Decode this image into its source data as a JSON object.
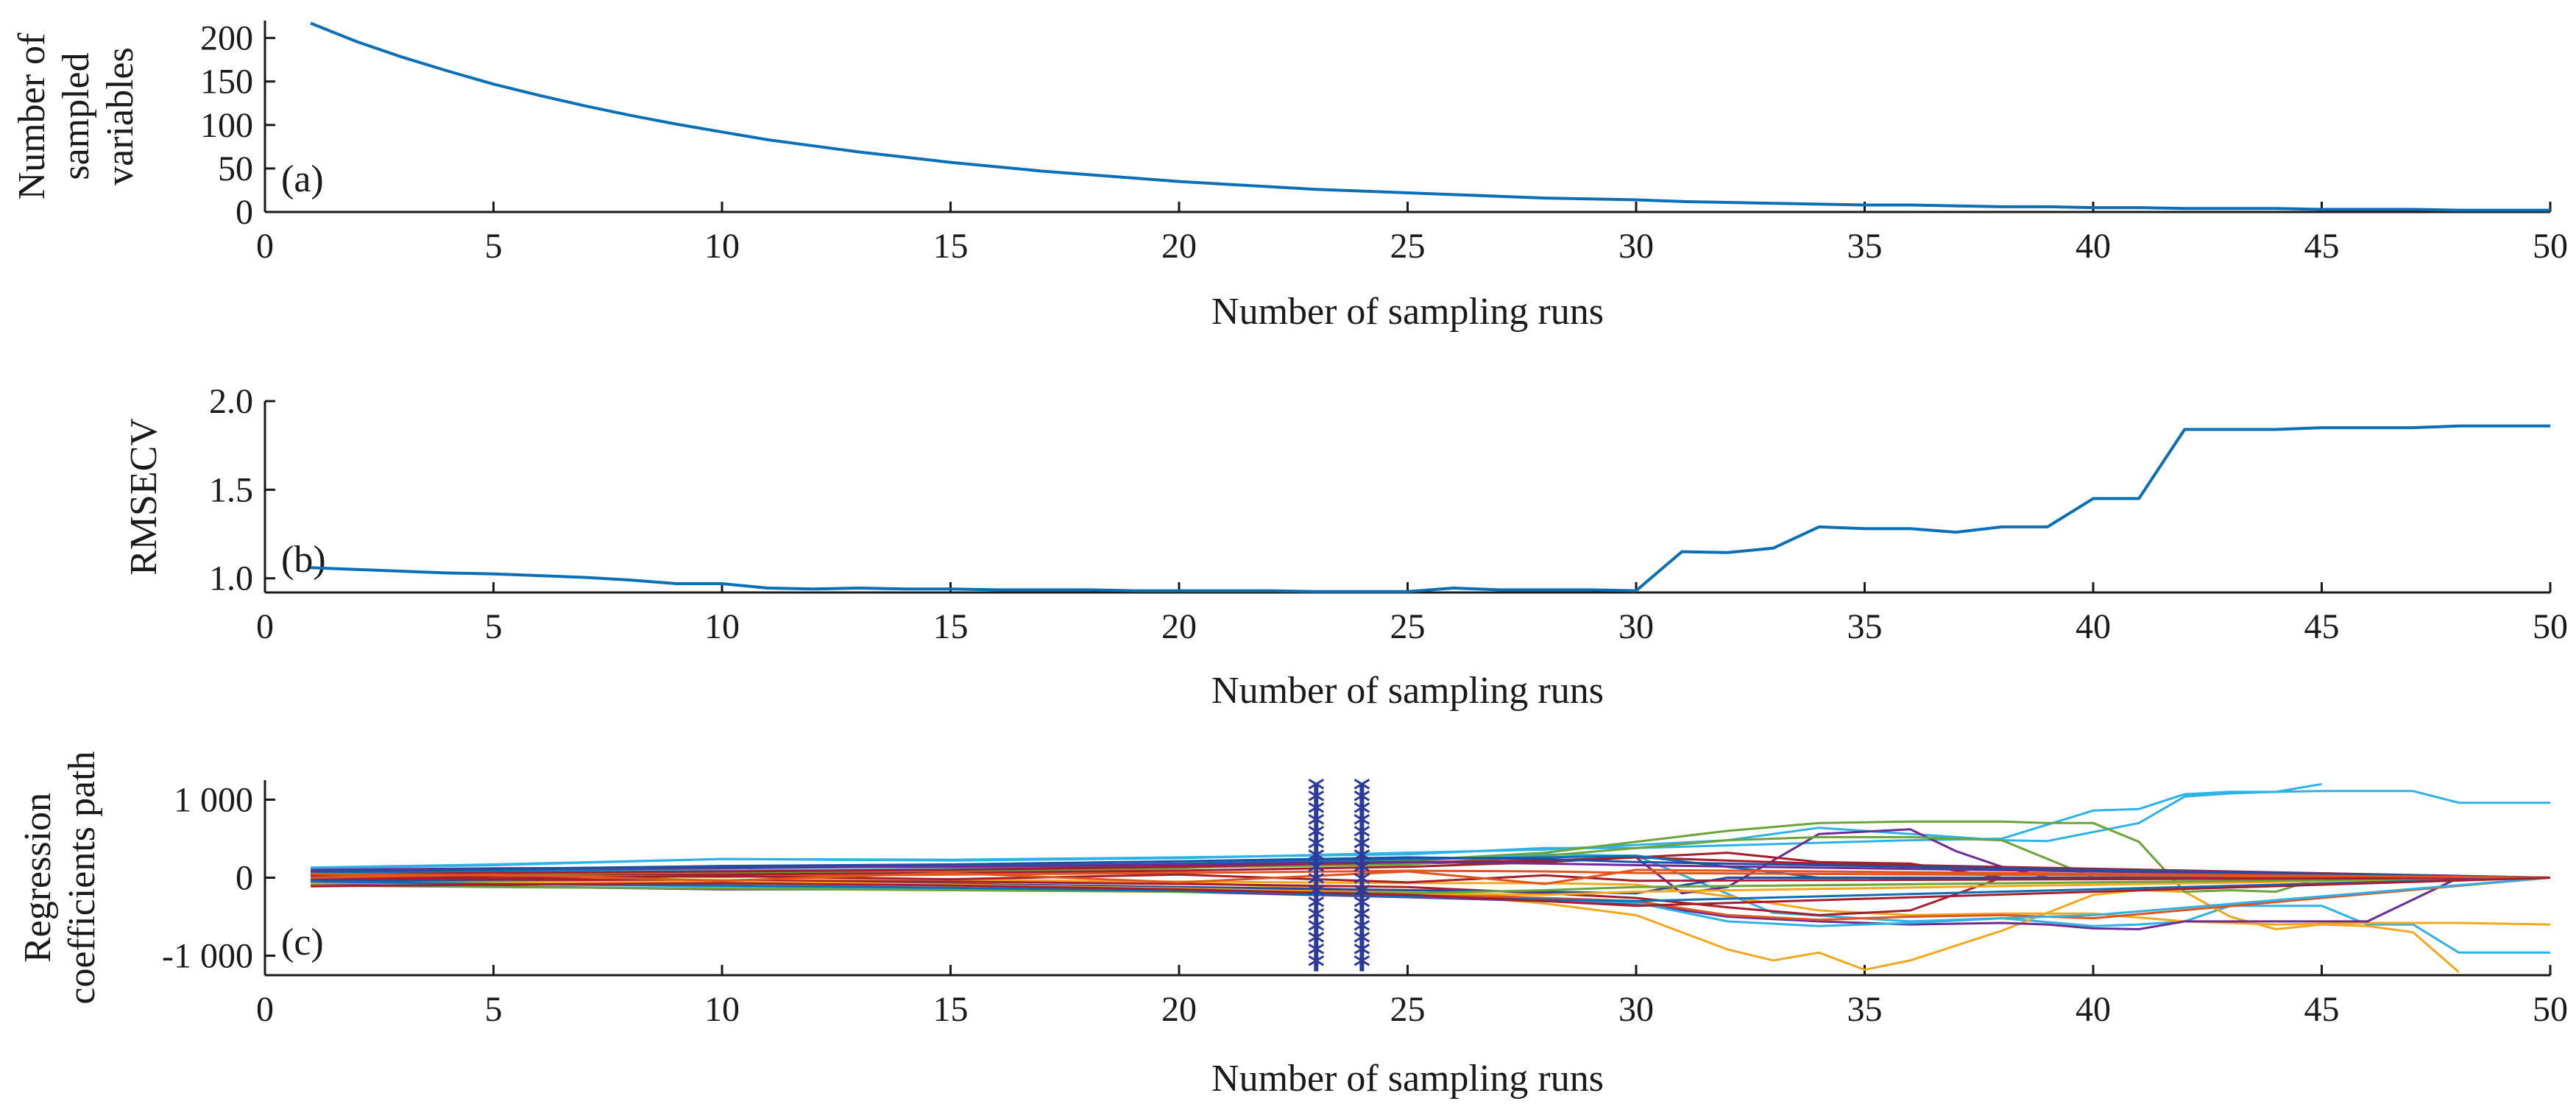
{
  "colors": {
    "primary_line": "#0a6fb5",
    "axis": "#1a1a1a",
    "marker": "#2d3a9a",
    "path_palette": [
      "#0a6fb5",
      "#e0541e",
      "#f2a81d",
      "#6d2c91",
      "#6aa43a",
      "#2eb2e6",
      "#a51e2e",
      "#1f4fa0"
    ]
  },
  "chart_data": [
    {
      "id": "a",
      "type": "line",
      "panel_label": "(a)",
      "xlabel": "Number of sampling runs",
      "ylabel": [
        "Number of",
        "sampled",
        "variables"
      ],
      "xlim": [
        0,
        50
      ],
      "ylim": [
        0,
        220
      ],
      "xticks": [
        0,
        5,
        10,
        15,
        20,
        25,
        30,
        35,
        40,
        45,
        50
      ],
      "yticks": [
        0,
        50,
        100,
        150,
        200
      ],
      "ytick_labels": [
        "0",
        "50",
        "100",
        "150",
        "200"
      ],
      "grid": false,
      "series": [
        {
          "x": [
            1,
            2,
            3,
            4,
            5,
            6,
            7,
            8,
            9,
            10,
            11,
            12,
            13,
            14,
            15,
            16,
            17,
            18,
            19,
            20,
            21,
            22,
            23,
            24,
            25,
            26,
            27,
            28,
            29,
            30,
            31,
            32,
            33,
            34,
            35,
            36,
            37,
            38,
            39,
            40,
            41,
            42,
            43,
            44,
            45,
            46,
            47,
            48,
            49,
            50
          ],
          "values": [
            217,
            196,
            178,
            162,
            147,
            134,
            122,
            111,
            101,
            92,
            83,
            76,
            69,
            63,
            57,
            52,
            47,
            43,
            39,
            35,
            32,
            29,
            26,
            24,
            22,
            20,
            18,
            16,
            15,
            14,
            12,
            11,
            10,
            9,
            8,
            8,
            7,
            6,
            6,
            5,
            5,
            4,
            4,
            4,
            3,
            3,
            3,
            2,
            2,
            2
          ]
        }
      ]
    },
    {
      "id": "b",
      "type": "line",
      "panel_label": "(b)",
      "xlabel": "Number of sampling runs",
      "ylabel": [
        "RMSECV"
      ],
      "xlim": [
        0,
        50
      ],
      "ylim": [
        0.92,
        2.0
      ],
      "xticks": [
        0,
        5,
        10,
        15,
        20,
        25,
        30,
        35,
        40,
        45,
        50
      ],
      "yticks": [
        1.0,
        1.5,
        2.0
      ],
      "ytick_labels": [
        "1.0",
        "1.5",
        "2.0"
      ],
      "grid": false,
      "series": [
        {
          "x": [
            1,
            2,
            3,
            4,
            5,
            6,
            7,
            8,
            9,
            10,
            11,
            12,
            13,
            14,
            15,
            16,
            17,
            18,
            19,
            20,
            21,
            22,
            23,
            24,
            25,
            26,
            27,
            28,
            29,
            30,
            31,
            32,
            33,
            34,
            35,
            36,
            37,
            38,
            39,
            40,
            41,
            42,
            43,
            44,
            45,
            46,
            47,
            48,
            49,
            50
          ],
          "values": [
            1.06,
            1.05,
            1.04,
            1.03,
            1.025,
            1.015,
            1.005,
            0.99,
            0.97,
            0.97,
            0.945,
            0.94,
            0.945,
            0.94,
            0.94,
            0.935,
            0.935,
            0.935,
            0.93,
            0.93,
            0.93,
            0.93,
            0.925,
            0.925,
            0.925,
            0.945,
            0.935,
            0.935,
            0.935,
            0.93,
            1.15,
            1.145,
            1.17,
            1.29,
            1.28,
            1.28,
            1.26,
            1.29,
            1.29,
            1.45,
            1.45,
            1.84,
            1.84,
            1.84,
            1.85,
            1.85,
            1.85,
            1.86,
            1.86,
            1.86
          ]
        }
      ]
    },
    {
      "id": "c",
      "type": "line",
      "panel_label": "(c)",
      "xlabel": "Number of sampling runs",
      "ylabel": [
        "Regression",
        "coefficients path"
      ],
      "xlim": [
        0,
        50
      ],
      "ylim": [
        -1250,
        1250
      ],
      "xticks": [
        0,
        5,
        10,
        15,
        20,
        25,
        30,
        35,
        40,
        45,
        50
      ],
      "yticks": [
        -1000,
        0,
        1000
      ],
      "ytick_labels": [
        "-1 000",
        "0",
        "1 000"
      ],
      "grid": false,
      "markers": {
        "x": [
          23,
          24
        ],
        "range": [
          -1200,
          1200
        ],
        "symbol": "asterisk"
      },
      "series": [
        {
          "x": [
            1,
            5,
            10,
            15,
            20,
            25,
            28,
            30,
            33,
            36,
            38,
            40,
            41,
            42,
            43,
            44,
            45,
            46,
            47,
            48,
            49,
            50
          ],
          "values": [
            120,
            160,
            240,
            230,
            260,
            300,
            380,
            380,
            430,
            480,
            500,
            860,
            880,
            1070,
            1100,
            1100,
            1110,
            1110,
            1110,
            960,
            960,
            960
          ],
          "color_index": 5
        },
        {
          "x": [
            1,
            5,
            10,
            15,
            20,
            25,
            28,
            30,
            33,
            36,
            38,
            40,
            41,
            42,
            43,
            44,
            45,
            46,
            47,
            48,
            49,
            50
          ],
          "values": [
            60,
            70,
            90,
            110,
            160,
            220,
            300,
            280,
            -450,
            -560,
            -520,
            -620,
            -600,
            -560,
            -360,
            -360,
            -360,
            -600,
            -600,
            -960,
            -960,
            -960
          ],
          "color_index": 5
        },
        {
          "x": [
            1,
            5,
            10,
            15,
            20,
            25,
            28,
            30,
            32,
            34,
            36,
            38,
            39,
            41,
            42,
            43,
            44,
            45
          ],
          "values": [
            130,
            170,
            240,
            220,
            250,
            320,
            360,
            420,
            480,
            640,
            560,
            480,
            470,
            700,
            1040,
            1080,
            1100,
            1200
          ],
          "color_index": 5
        },
        {
          "x": [
            1,
            5,
            10,
            15,
            20,
            25,
            28,
            30,
            32,
            33,
            34,
            35,
            36,
            38,
            40,
            41,
            42,
            43,
            44,
            45,
            46,
            47,
            48
          ],
          "values": [
            20,
            10,
            -30,
            -20,
            -60,
            -180,
            -330,
            -480,
            -920,
            -1060,
            -960,
            -1180,
            -1060,
            -680,
            -220,
            -160,
            -180,
            -500,
            -660,
            -600,
            -620,
            -700,
            -1210
          ],
          "color_index": 2
        },
        {
          "x": [
            1,
            5,
            10,
            15,
            20,
            25,
            28,
            30,
            32,
            34,
            36,
            38,
            40,
            42,
            44,
            46,
            48,
            50
          ],
          "values": [
            -40,
            -60,
            -80,
            -60,
            -50,
            -70,
            -70,
            -90,
            -240,
            -420,
            -480,
            -460,
            -460,
            -560,
            -600,
            -580,
            -580,
            -600
          ],
          "color_index": 2
        },
        {
          "x": [
            1,
            5,
            10,
            15,
            20,
            25,
            28,
            30,
            32,
            34,
            36,
            38,
            39,
            40,
            41,
            42,
            44,
            46,
            48,
            50
          ],
          "values": [
            -90,
            -110,
            -150,
            -150,
            -180,
            -250,
            -300,
            -330,
            -500,
            -560,
            -600,
            -580,
            -600,
            -650,
            -660,
            -560,
            -560,
            -560,
            0,
            0
          ],
          "color_index": 3
        },
        {
          "x": [
            1,
            5,
            10,
            15,
            20,
            25,
            28,
            30,
            31,
            32,
            34,
            36,
            37,
            38,
            39,
            40,
            50
          ],
          "values": [
            30,
            50,
            80,
            100,
            150,
            180,
            220,
            260,
            -200,
            -120,
            560,
            620,
            340,
            140,
            0,
            0,
            0
          ],
          "color_index": 3
        },
        {
          "x": [
            1,
            5,
            10,
            15,
            20,
            25,
            28,
            30,
            32,
            34,
            36,
            38,
            39,
            40,
            41,
            42,
            43,
            44,
            45,
            50
          ],
          "values": [
            10,
            30,
            70,
            80,
            120,
            220,
            320,
            460,
            600,
            700,
            720,
            720,
            700,
            700,
            460,
            -180,
            -160,
            -180,
            0,
            0
          ],
          "color_index": 4
        },
        {
          "x": [
            1,
            5,
            10,
            15,
            20,
            25,
            28,
            30,
            32,
            34,
            36,
            38,
            40,
            50
          ],
          "values": [
            20,
            40,
            60,
            90,
            130,
            170,
            280,
            380,
            480,
            520,
            520,
            480,
            0,
            0
          ],
          "color_index": 4
        },
        {
          "x": [
            1,
            5,
            10,
            15,
            20,
            25,
            28,
            30,
            32,
            34,
            36,
            38,
            50
          ],
          "values": [
            0,
            20,
            40,
            60,
            90,
            140,
            200,
            260,
            320,
            200,
            180,
            0,
            0
          ],
          "color_index": 6
        },
        {
          "x": [
            1,
            5,
            10,
            15,
            20,
            25,
            28,
            30,
            32,
            34,
            36,
            38,
            40,
            50
          ],
          "values": [
            -20,
            -30,
            -60,
            -80,
            -120,
            -200,
            -260,
            -300,
            -480,
            -540,
            -500,
            -480,
            -520,
            0
          ],
          "color_index": 1
        },
        {
          "x": [
            1,
            5,
            10,
            15,
            20,
            25,
            28,
            30,
            32,
            34,
            36,
            38,
            50
          ],
          "values": [
            -10,
            -20,
            -40,
            -50,
            -80,
            -120,
            -200,
            -260,
            -380,
            -480,
            -420,
            0,
            0
          ],
          "color_index": 6
        },
        {
          "x": [
            1,
            5,
            10,
            15,
            20,
            25,
            28,
            30,
            32,
            34,
            36,
            50
          ],
          "values": [
            40,
            60,
            80,
            100,
            140,
            200,
            220,
            260,
            220,
            180,
            160,
            0
          ],
          "color_index": 6
        },
        {
          "x": [
            1,
            5,
            10,
            15,
            20,
            25,
            28,
            30,
            32,
            34,
            50
          ],
          "values": [
            70,
            90,
            120,
            150,
            180,
            240,
            260,
            280,
            140,
            0,
            0
          ],
          "color_index": 0
        },
        {
          "x": [
            1,
            5,
            10,
            15,
            20,
            25,
            28,
            30,
            32,
            34,
            36,
            38,
            40,
            50
          ],
          "values": [
            -60,
            -80,
            -110,
            -140,
            -160,
            -240,
            -280,
            -320,
            -560,
            -620,
            -580,
            -520,
            -480,
            0
          ],
          "color_index": 5
        },
        {
          "x": [
            1,
            5,
            10,
            15,
            20,
            25,
            28,
            30,
            32,
            50
          ],
          "values": [
            -30,
            -50,
            -70,
            -80,
            -120,
            -160,
            -180,
            -200,
            0,
            0
          ],
          "color_index": 7
        },
        {
          "x": [
            1,
            5,
            10,
            15,
            20,
            25,
            28,
            30,
            50
          ],
          "values": [
            50,
            30,
            10,
            40,
            60,
            90,
            80,
            60,
            0
          ],
          "color_index": 1
        },
        {
          "x": [
            1,
            5,
            10,
            15,
            20,
            25,
            28,
            30,
            50
          ],
          "values": [
            -70,
            -60,
            -50,
            -90,
            -140,
            -200,
            -220,
            -180,
            0
          ],
          "color_index": 2
        },
        {
          "x": [
            1,
            5,
            10,
            15,
            20,
            25,
            28,
            30,
            50
          ],
          "values": [
            100,
            120,
            130,
            140,
            170,
            200,
            180,
            160,
            0
          ],
          "color_index": 3
        },
        {
          "x": [
            1,
            5,
            10,
            15,
            20,
            25,
            28,
            30,
            50
          ],
          "values": [
            -100,
            -120,
            -140,
            -160,
            -180,
            -200,
            -160,
            -120,
            0
          ],
          "color_index": 4
        },
        {
          "x": [
            1,
            5,
            10,
            15,
            20,
            25,
            28,
            30,
            50
          ],
          "values": [
            10,
            -10,
            20,
            -20,
            40,
            -60,
            30,
            -40,
            0
          ],
          "color_index": 6
        },
        {
          "x": [
            1,
            5,
            10,
            15,
            20,
            25,
            28,
            30,
            50
          ],
          "values": [
            80,
            110,
            150,
            170,
            210,
            260,
            240,
            200,
            0
          ],
          "color_index": 7
        },
        {
          "x": [
            1,
            5,
            10,
            15,
            20,
            25,
            28,
            30,
            50
          ],
          "values": [
            -50,
            -80,
            -100,
            -130,
            -170,
            -240,
            -280,
            -300,
            0
          ],
          "color_index": 0
        },
        {
          "x": [
            1,
            5,
            10,
            15,
            20,
            25,
            28,
            30,
            50
          ],
          "values": [
            0,
            40,
            -40,
            60,
            -60,
            80,
            -80,
            100,
            0
          ],
          "color_index": 1
        },
        {
          "x": [
            1,
            5,
            10,
            15,
            20,
            25,
            28,
            30,
            50
          ],
          "values": [
            -110,
            -90,
            -70,
            -100,
            -150,
            -220,
            -300,
            -360,
            0
          ],
          "color_index": 6
        }
      ]
    }
  ]
}
